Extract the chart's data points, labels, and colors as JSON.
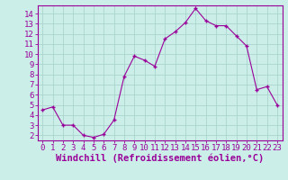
{
  "x": [
    0,
    1,
    2,
    3,
    4,
    5,
    6,
    7,
    8,
    9,
    10,
    11,
    12,
    13,
    14,
    15,
    16,
    17,
    18,
    19,
    20,
    21,
    22,
    23
  ],
  "y": [
    4.5,
    4.8,
    3.0,
    3.0,
    2.0,
    1.8,
    2.1,
    3.5,
    7.8,
    9.8,
    9.4,
    8.8,
    11.5,
    12.2,
    13.1,
    14.5,
    13.3,
    12.8,
    12.8,
    11.8,
    10.8,
    6.5,
    6.8,
    5.0
  ],
  "line_color": "#990099",
  "marker": "+",
  "bg_color": "#cceee8",
  "grid_color": "#aad4ce",
  "xlabel": "Windchill (Refroidissement éolien,°C)",
  "xlim": [
    -0.5,
    23.5
  ],
  "ylim": [
    1.5,
    14.8
  ],
  "yticks": [
    2,
    3,
    4,
    5,
    6,
    7,
    8,
    9,
    10,
    11,
    12,
    13,
    14
  ],
  "xticks": [
    0,
    1,
    2,
    3,
    4,
    5,
    6,
    7,
    8,
    9,
    10,
    11,
    12,
    13,
    14,
    15,
    16,
    17,
    18,
    19,
    20,
    21,
    22,
    23
  ],
  "tick_color": "#990099",
  "label_color": "#990099",
  "spine_color": "#990099",
  "font_size": 6.5,
  "xlabel_fontsize": 7.5
}
